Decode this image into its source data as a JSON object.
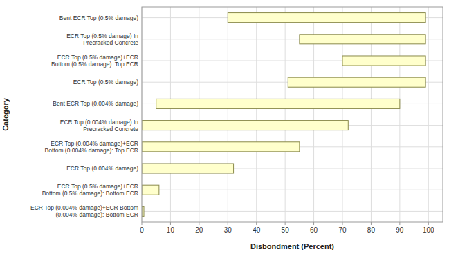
{
  "chart_data": {
    "type": "bar",
    "orientation": "horizontal",
    "categories": [
      "ECR Top (0.004% damage)+ECR Bottom\n(0.004% damage): Bottom ECR",
      "ECR Top (0.5% damage)+ECR\nBottom (0.5%  damage): Bottom ECR",
      "ECR Top (0.004% damage)",
      "ECR Top (0.004% damage)+ECR\nBottom (0.004% damage): Top ECR",
      "ECR Top (0.004% damage) In\nPrecracked Concrete",
      "Bent ECR Top (0.004% damage)",
      "ECR Top (0.5% damage)",
      "ECR Top (0.5% damage)+ECR\nBottom (0.5% damage): Top ECR",
      "ECR Top (0.5% damage) In\nPrecracked  Concrete",
      "Bent ECR Top (0.5% damage)"
    ],
    "low": [
      0,
      0,
      0,
      0,
      0,
      5,
      51,
      70,
      55,
      30
    ],
    "values": [
      0,
      6,
      32,
      55,
      72,
      90,
      99,
      99,
      99,
      99
    ],
    "color": "#ffffcc",
    "xlabel": "Disbondment (Percent)",
    "ylabel": "Category",
    "xlim": [
      0,
      105
    ],
    "xticks": [
      0,
      10,
      20,
      30,
      40,
      50,
      60,
      70,
      80,
      90,
      100
    ],
    "grid": true
  }
}
